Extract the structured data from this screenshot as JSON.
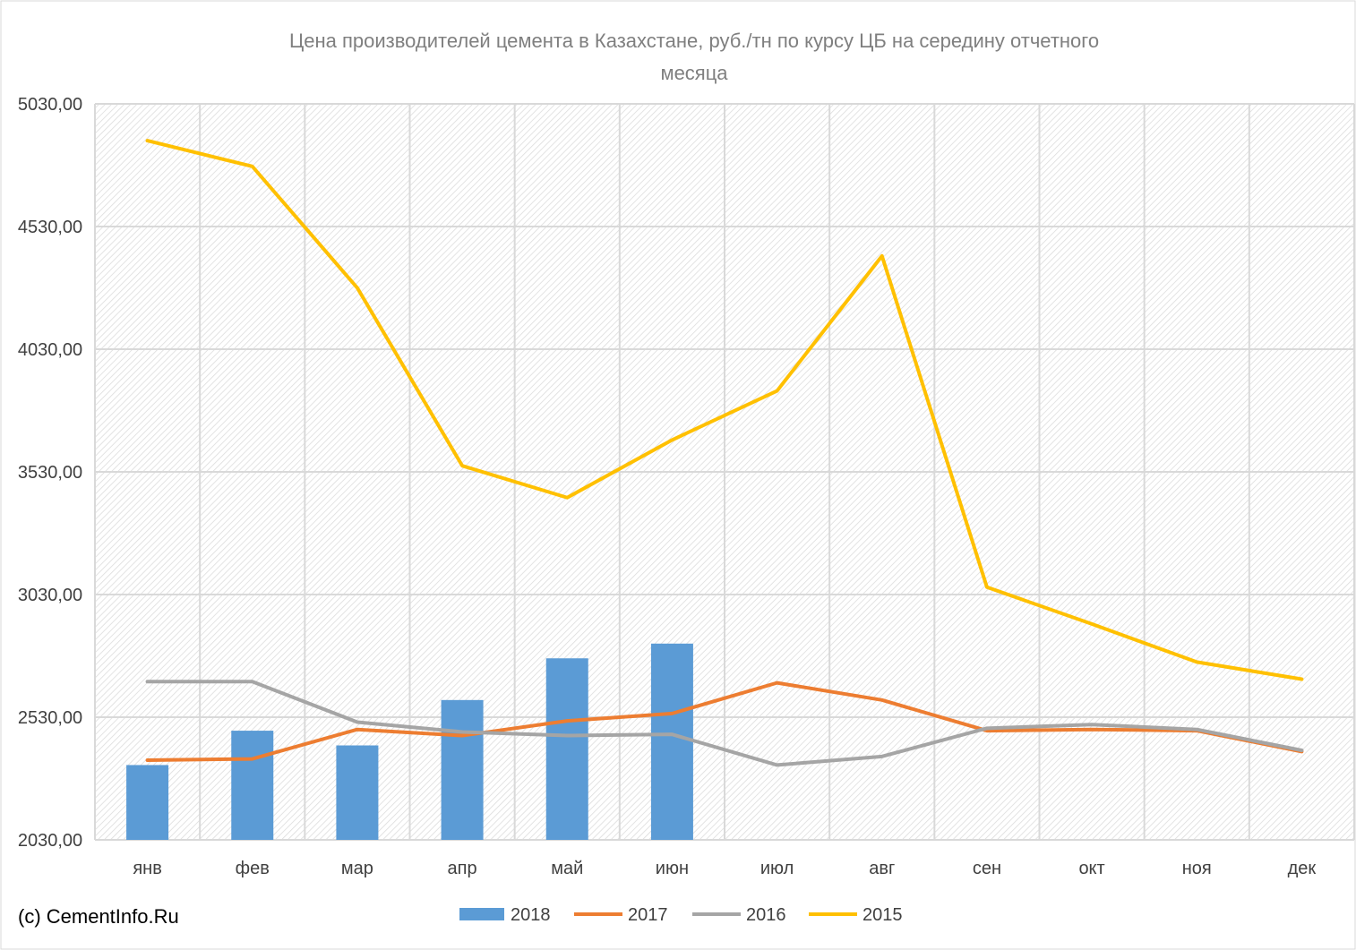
{
  "chart_data": {
    "type": "bar",
    "title_lines": [
      "Цена производителей цемента в Казахстане, руб./тн по курсу ЦБ на середину отчетного",
      "месяца"
    ],
    "categories": [
      "янв",
      "фев",
      "мар",
      "апр",
      "май",
      "июн",
      "июл",
      "авг",
      "сен",
      "окт",
      "ноя",
      "дек"
    ],
    "y_ticks": [
      "5030,00",
      "4530,00",
      "4030,00",
      "3530,00",
      "3030,00",
      "2530,00",
      "2030,00"
    ],
    "ylim": [
      2030,
      5030
    ],
    "grid": true,
    "legend_position": "bottom",
    "series": [
      {
        "name": "2018",
        "kind": "bar",
        "color": "#5b9bd5",
        "values": [
          2335,
          2475,
          2415,
          2600,
          2770,
          2830,
          null,
          null,
          null,
          null,
          null,
          null
        ]
      },
      {
        "name": "2017",
        "kind": "line",
        "color": "#ed7d31",
        "values": [
          2355,
          2360,
          2480,
          2455,
          2515,
          2545,
          2670,
          2600,
          2475,
          2480,
          2475,
          2390
        ]
      },
      {
        "name": "2016",
        "kind": "line",
        "color": "#a5a5a5",
        "values": [
          2675,
          2675,
          2510,
          2470,
          2455,
          2460,
          2335,
          2370,
          2485,
          2500,
          2480,
          2395
        ]
      },
      {
        "name": "2015",
        "kind": "line",
        "color": "#ffc000",
        "values": [
          4880,
          4775,
          4280,
          3555,
          3425,
          3660,
          3860,
          4410,
          3060,
          2910,
          2755,
          2685
        ]
      }
    ]
  },
  "copyright": "(c) CementInfo.Ru"
}
